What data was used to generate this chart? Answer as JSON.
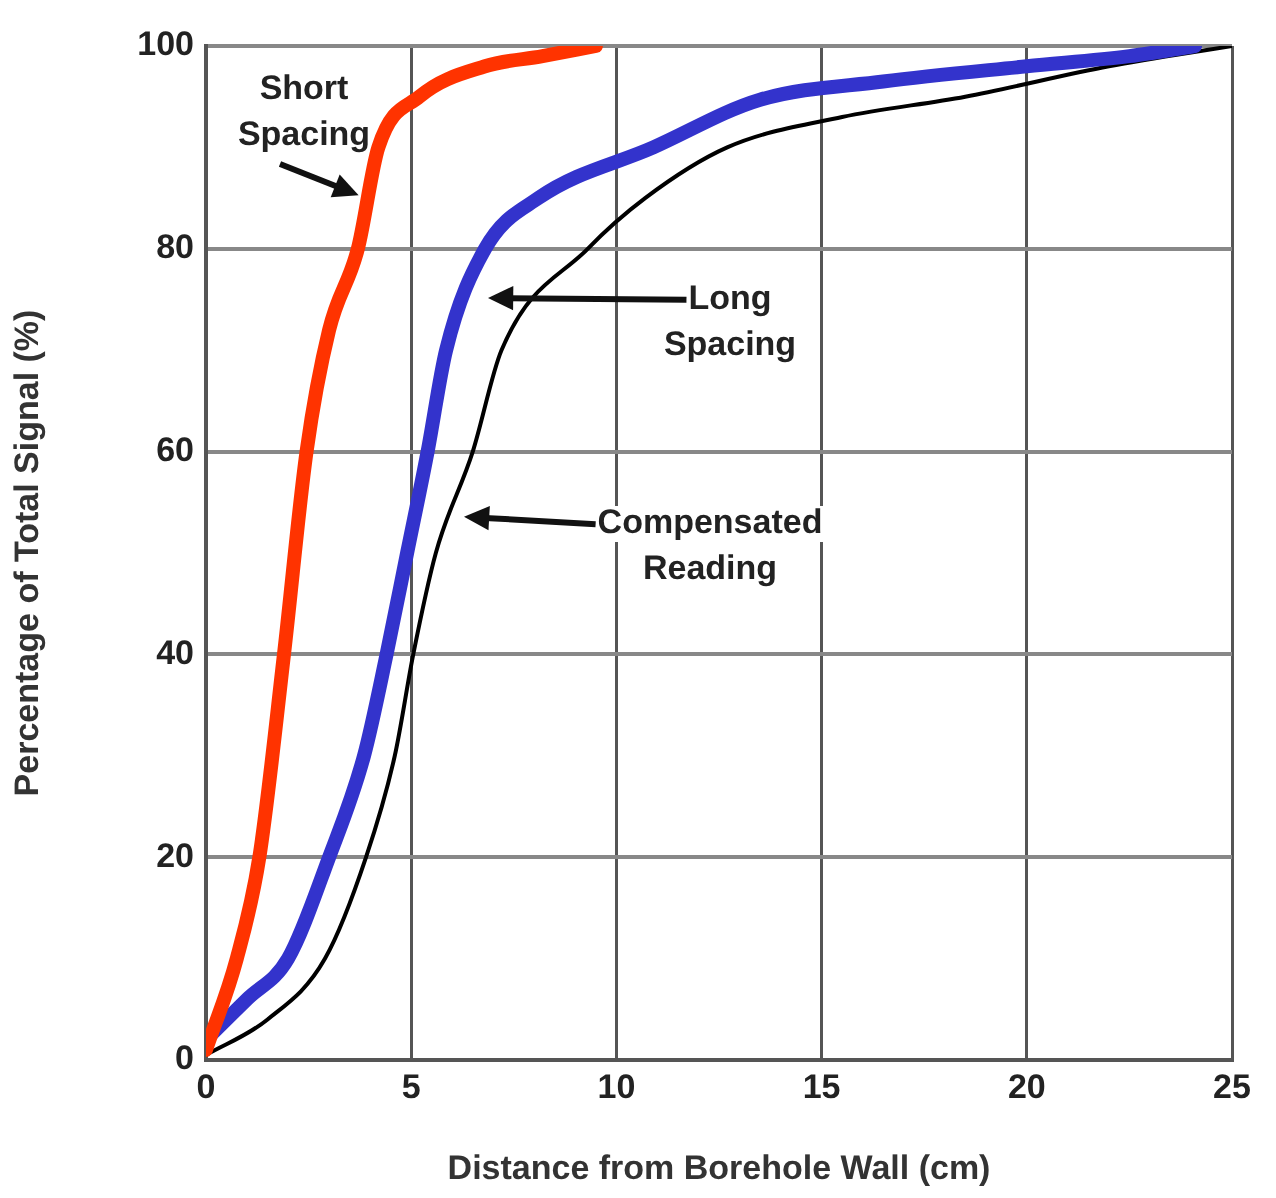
{
  "chart_data": {
    "type": "line",
    "xlabel": "Distance from Borehole Wall (cm)",
    "ylabel": "Percentage of Total Signal (%)",
    "xlim": [
      0,
      25
    ],
    "xticks": [
      0,
      5,
      10,
      15,
      20,
      25
    ],
    "ylim": [
      0,
      100
    ],
    "yticks": [
      0,
      20,
      40,
      60,
      80,
      100
    ],
    "grid": true,
    "legend": false,
    "marker": "none",
    "line_style": "solid",
    "series": [
      {
        "color": "#ff3300",
        "x": [
          0,
          0.75,
          1.3,
          1.9,
          2.45,
          3.0,
          3.7,
          4.2,
          5.2,
          6.8,
          8.2,
          9.5
        ],
        "values": [
          1,
          10,
          20,
          40,
          60,
          72,
          80,
          90,
          95,
          98,
          99,
          100
        ]
      },
      {
        "color": "#3333cc",
        "x": [
          0,
          1,
          2.0,
          3.0,
          3.85,
          4.4,
          4.9,
          5.4,
          5.85,
          6.8,
          8.1,
          10.9,
          13.5,
          16.5,
          20,
          22.5,
          24.1
        ],
        "values": [
          2,
          6,
          10,
          20,
          30,
          40,
          50,
          60,
          70,
          80,
          85,
          90,
          94.7,
          96.5,
          98,
          99,
          100
        ]
      },
      {
        "color": "#000000",
        "x": [
          0,
          1.5,
          2.9,
          3.9,
          4.6,
          5.05,
          5.6,
          6.5,
          7.2,
          9.3,
          10.7,
          12.7,
          15.5,
          18.5,
          22,
          25
        ],
        "values": [
          0.5,
          4,
          10,
          20,
          30,
          40,
          50,
          60,
          70,
          80,
          85,
          90,
          93,
          95,
          98,
          100
        ]
      }
    ],
    "annotations": [
      {
        "text": "Short Spacing",
        "x": 3.9,
        "y": 85
      },
      "Long Spacing",
      "Compensated Reading"
    ]
  }
}
